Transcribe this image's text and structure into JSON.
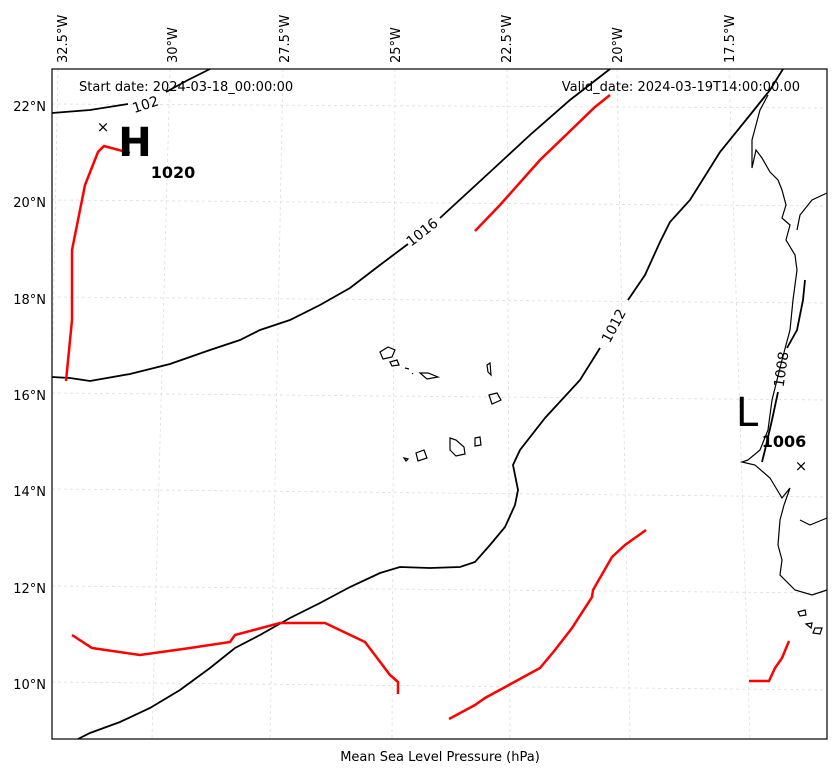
{
  "map": {
    "start_date": "Start date: 2024-03-18_00:00:00",
    "valid_date": "Valid_date: 2024-03-19T14:00:00.00",
    "xlabel": "Mean Sea Level Pressure (hPa)",
    "lon_labels": [
      "32.5°W",
      "30°W",
      "27.5°W",
      "25°W",
      "22.5°W",
      "20°W",
      "17.5°W"
    ],
    "lat_labels": [
      "22°N",
      "20°N",
      "18°N",
      "16°N",
      "14°N",
      "12°N",
      "10°N"
    ],
    "contour_labels": [
      "102",
      "1016",
      "1012",
      "1008"
    ],
    "high": {
      "letter": "H",
      "value": "1020",
      "marker": "×"
    },
    "low": {
      "letter": "L",
      "value": "1006",
      "marker": "×"
    },
    "colors": {
      "isobar": "#000000",
      "trough": "#ff0000",
      "grid": "#cccccc"
    }
  }
}
